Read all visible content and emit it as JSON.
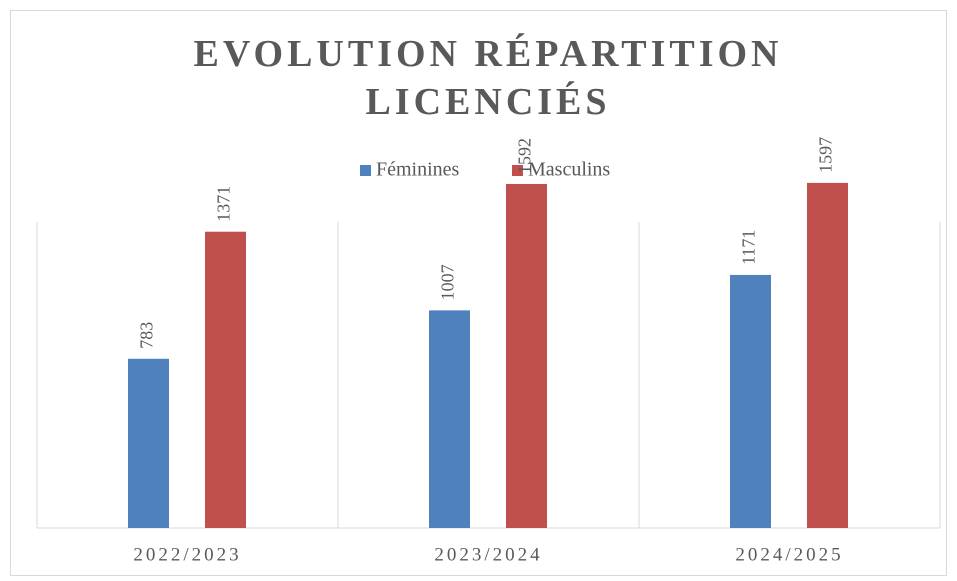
{
  "chart_data": {
    "type": "bar",
    "title": "EVOLUTION RÉPARTITION LICENCIÉS",
    "categories": [
      "2022/2023",
      "2023/2024",
      "2024/2025"
    ],
    "series": [
      {
        "name": "Féminines",
        "color": "#4f81bd",
        "values": [
          783,
          1007,
          1171
        ]
      },
      {
        "name": "Masculins",
        "color": "#c0504d",
        "values": [
          1371,
          1592,
          1597
        ]
      }
    ],
    "ylim": [
      0,
      1800
    ],
    "legend": "top"
  }
}
